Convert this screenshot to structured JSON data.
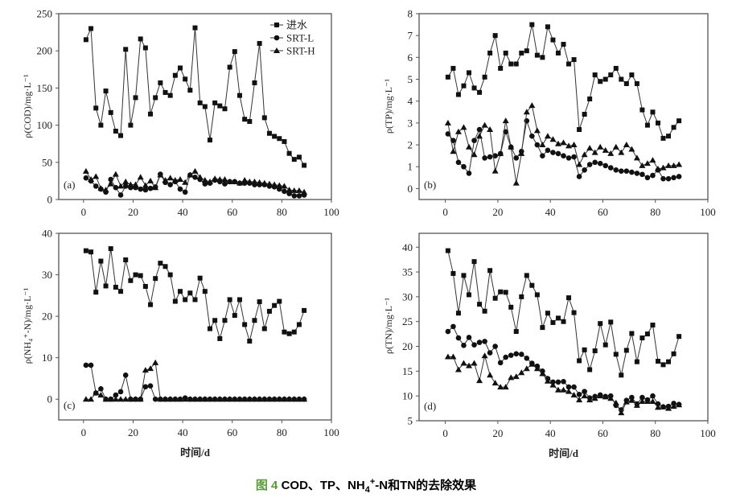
{
  "chart_data": [
    {
      "type": "line",
      "panel_label": "(a)",
      "ylabel": "ρ(COD)/mg·L⁻¹",
      "xlabel": "",
      "xlim": [
        -10,
        100
      ],
      "ylim": [
        0,
        250
      ],
      "xticks": [
        0,
        20,
        40,
        60,
        80,
        100
      ],
      "yticks": [
        0,
        50,
        100,
        150,
        200,
        250
      ],
      "legend": "top-right",
      "x": [
        1,
        3,
        5,
        7,
        9,
        11,
        13,
        15,
        17,
        19,
        21,
        23,
        25,
        27,
        29,
        31,
        33,
        35,
        37,
        39,
        41,
        43,
        45,
        47,
        49,
        51,
        53,
        55,
        57,
        59,
        61,
        63,
        65,
        67,
        69,
        71,
        73,
        75,
        77,
        79,
        81,
        83,
        85,
        87,
        89
      ],
      "series": [
        {
          "name": "进水",
          "marker": "square",
          "values": [
            215,
            230,
            123,
            100,
            146,
            117,
            92,
            86,
            202,
            100,
            137,
            216,
            204,
            115,
            137,
            157,
            144,
            140,
            167,
            177,
            162,
            147,
            231,
            130,
            125,
            80,
            130,
            126,
            122,
            178,
            199,
            140,
            108,
            105,
            157,
            210,
            110,
            89,
            85,
            82,
            78,
            62,
            54,
            57,
            46
          ]
        },
        {
          "name": "SRT-L",
          "marker": "circle",
          "values": [
            29,
            25,
            18,
            14,
            10,
            27,
            16,
            6,
            18,
            16,
            16,
            14,
            13,
            15,
            17,
            34,
            23,
            20,
            24,
            14,
            10,
            33,
            30,
            27,
            21,
            22,
            26,
            24,
            21,
            24,
            24,
            22,
            22,
            22,
            20,
            20,
            20,
            18,
            17,
            14,
            11,
            8,
            5,
            5,
            6
          ]
        },
        {
          "name": "SRT-H",
          "marker": "triangle",
          "values": [
            38,
            27,
            31,
            15,
            13,
            21,
            34,
            18,
            24,
            20,
            20,
            30,
            19,
            25,
            16,
            33,
            26,
            29,
            26,
            27,
            23,
            33,
            38,
            30,
            26,
            24,
            28,
            27,
            27,
            24,
            24,
            22,
            26,
            24,
            24,
            23,
            22,
            21,
            20,
            19,
            18,
            13,
            12,
            12,
            10
          ]
        }
      ]
    },
    {
      "type": "line",
      "panel_label": "(b)",
      "ylabel": "ρ(TP)/mg·L⁻¹",
      "xlabel": "",
      "xlim": [
        -10,
        100
      ],
      "ylim": [
        -0.5,
        8
      ],
      "xticks": [
        0,
        20,
        40,
        60,
        80,
        100
      ],
      "yticks": [
        0,
        1,
        2,
        3,
        4,
        5,
        6,
        7,
        8
      ],
      "x": [
        1,
        3,
        5,
        7,
        9,
        11,
        13,
        15,
        17,
        19,
        21,
        23,
        25,
        27,
        29,
        31,
        33,
        35,
        37,
        39,
        41,
        43,
        45,
        47,
        49,
        51,
        53,
        55,
        57,
        59,
        61,
        63,
        65,
        67,
        69,
        71,
        73,
        75,
        77,
        79,
        81,
        83,
        85,
        87,
        89
      ],
      "series": [
        {
          "marker": "square",
          "values": [
            5.1,
            5.5,
            4.3,
            4.7,
            5.3,
            4.6,
            4.4,
            5.1,
            6.2,
            7.0,
            5.5,
            6.2,
            5.7,
            5.7,
            6.2,
            6.3,
            7.5,
            6.1,
            6.0,
            7.4,
            6.8,
            6.2,
            6.6,
            5.7,
            5.9,
            2.7,
            3.4,
            4.1,
            5.2,
            4.9,
            5.0,
            5.2,
            5.5,
            5.0,
            4.8,
            5.2,
            4.8,
            3.6,
            2.9,
            3.5,
            3.0,
            2.3,
            2.4,
            2.8,
            3.1
          ]
        },
        {
          "marker": "circle",
          "values": [
            2.5,
            2.2,
            1.2,
            1.0,
            0.7,
            2.2,
            2.7,
            1.4,
            1.45,
            1.5,
            1.6,
            2.6,
            1.9,
            1.4,
            1.7,
            3.1,
            2.4,
            2.0,
            1.5,
            1.75,
            1.65,
            1.6,
            1.5,
            1.4,
            1.45,
            0.55,
            0.85,
            1.1,
            1.2,
            1.15,
            1.05,
            0.95,
            0.85,
            0.8,
            0.8,
            0.75,
            0.7,
            0.65,
            0.5,
            0.6,
            0.85,
            0.45,
            0.45,
            0.5,
            0.55
          ]
        },
        {
          "marker": "triangle",
          "values": [
            3.0,
            1.7,
            2.6,
            2.8,
            1.9,
            1.55,
            2.4,
            2.9,
            2.7,
            0.8,
            1.6,
            3.1,
            1.9,
            0.25,
            1.6,
            3.5,
            3.8,
            2.65,
            2.0,
            2.4,
            2.25,
            2.05,
            2.1,
            1.95,
            2.0,
            1.1,
            1.55,
            1.85,
            1.65,
            1.9,
            1.75,
            1.6,
            1.9,
            1.65,
            2.0,
            1.8,
            1.4,
            1.05,
            1.15,
            1.3,
            0.9,
            0.95,
            1.05,
            1.05,
            1.1
          ]
        }
      ]
    },
    {
      "type": "line",
      "panel_label": "(c)",
      "ylabel": "ρ(NH₄⁺-N)/mg·L⁻¹",
      "xlabel": "时间/d",
      "xlim": [
        -10,
        100
      ],
      "ylim": [
        -5,
        40
      ],
      "xticks": [
        0,
        20,
        40,
        60,
        80,
        100
      ],
      "yticks": [
        0,
        10,
        20,
        30,
        40
      ],
      "x": [
        1,
        3,
        5,
        7,
        9,
        11,
        13,
        15,
        17,
        19,
        21,
        23,
        25,
        27,
        29,
        31,
        33,
        35,
        37,
        39,
        41,
        43,
        45,
        47,
        49,
        51,
        53,
        55,
        57,
        59,
        61,
        63,
        65,
        67,
        69,
        71,
        73,
        75,
        77,
        79,
        81,
        83,
        85,
        87,
        89
      ],
      "series": [
        {
          "marker": "square",
          "values": [
            35.8,
            35.5,
            25.8,
            33.3,
            27.3,
            36.3,
            27.0,
            26.0,
            33.6,
            28.6,
            30,
            29.8,
            27.2,
            22.8,
            29.1,
            32.8,
            32,
            30,
            23.6,
            26,
            24,
            25.6,
            24,
            29.2,
            26,
            17,
            19,
            14.6,
            19,
            24,
            20.2,
            24,
            18,
            14,
            19,
            23.5,
            17,
            21.2,
            22.6,
            23.6,
            16.2,
            15.8,
            16.2,
            18,
            21.4
          ]
        },
        {
          "marker": "circle",
          "values": [
            8.2,
            8.2,
            1.5,
            2.5,
            0,
            0,
            1.0,
            1.8,
            5.8,
            0,
            0,
            0,
            3.0,
            3.2,
            0,
            0,
            0,
            0,
            0,
            0,
            0.3,
            0,
            0,
            0,
            0,
            0,
            0,
            0,
            0,
            0,
            0,
            0,
            0,
            0,
            0,
            0,
            0,
            0,
            0,
            0,
            0,
            0,
            0,
            0,
            0
          ]
        },
        {
          "marker": "triangle",
          "values": [
            0,
            0,
            1.5,
            1.0,
            0,
            0,
            0,
            0,
            0,
            0,
            0,
            0,
            7.0,
            7.4,
            8.8,
            0,
            0,
            0,
            0,
            0,
            0,
            0,
            0,
            0,
            0,
            0,
            0,
            0,
            0,
            0,
            0,
            0,
            0,
            0,
            0,
            0,
            0,
            0,
            0,
            0,
            0,
            0,
            0,
            0,
            0
          ]
        }
      ]
    },
    {
      "type": "line",
      "panel_label": "(d)",
      "ylabel": "ρ(TN)/mg·L⁻¹",
      "xlabel": "时间/d",
      "xlim": [
        -10,
        100
      ],
      "ylim": [
        5,
        42.8
      ],
      "xticks": [
        0,
        20,
        40,
        60,
        80,
        100
      ],
      "yticks": [
        5,
        10,
        15,
        20,
        25,
        30,
        35,
        40
      ],
      "x": [
        1,
        3,
        5,
        7,
        9,
        11,
        13,
        15,
        17,
        19,
        21,
        23,
        25,
        27,
        29,
        31,
        33,
        35,
        37,
        39,
        41,
        43,
        45,
        47,
        49,
        51,
        53,
        55,
        57,
        59,
        61,
        63,
        65,
        67,
        69,
        71,
        73,
        75,
        77,
        79,
        81,
        83,
        85,
        87,
        89
      ],
      "series": [
        {
          "marker": "square",
          "values": [
            39.3,
            34.7,
            26.7,
            34.3,
            30.4,
            37.1,
            28.5,
            27.1,
            35.3,
            29.7,
            31,
            30.9,
            27.9,
            23,
            30,
            34.3,
            32.3,
            30.4,
            23.8,
            26.7,
            24.8,
            25.7,
            25,
            29.8,
            26.8,
            17.1,
            19.3,
            15.3,
            19.1,
            24.6,
            20.3,
            24.9,
            18.4,
            14.2,
            19.2,
            22.6,
            16.9,
            21.7,
            22.5,
            24.3,
            17,
            16.3,
            16.9,
            18.5,
            22
          ]
        },
        {
          "marker": "circle",
          "values": [
            23,
            24,
            21.7,
            20.2,
            21.8,
            20.3,
            20.8,
            21,
            18.7,
            20,
            16.7,
            17.8,
            18.2,
            18.5,
            18.4,
            17.6,
            16.6,
            16,
            15,
            13.5,
            12.8,
            12.8,
            12.9,
            11.8,
            11.8,
            10.3,
            10.9,
            9.6,
            9.9,
            10.2,
            9.9,
            10,
            8.1,
            7.2,
            9.1,
            9.7,
            8.4,
            9.7,
            9.2,
            10,
            8.4,
            7.8,
            7.9,
            8.5,
            8.3
          ]
        },
        {
          "marker": "triangle",
          "values": [
            17.9,
            17.9,
            15.3,
            16.6,
            16.1,
            16.6,
            13.1,
            18.1,
            14.2,
            12.6,
            11.8,
            11.8,
            13.7,
            13.9,
            14.7,
            15.5,
            16.4,
            15.5,
            14.5,
            13,
            12.2,
            11.2,
            11.2,
            10.9,
            10.2,
            9.2,
            10,
            9.2,
            9.5,
            10,
            9.8,
            9.5,
            8.6,
            6.6,
            8.8,
            9.1,
            8.1,
            8.9,
            8.9,
            8.9,
            7.7,
            7.8,
            7.5,
            7.9,
            8.2
          ]
        }
      ]
    }
  ],
  "caption": {
    "figure_number": "图 4",
    "text": "COD、TP、NH4+-N和TN的去除效果",
    "number_color": "#5a9a3a"
  },
  "colors": {
    "line": "#333333",
    "marker": "#111111",
    "axis": "#555555"
  }
}
